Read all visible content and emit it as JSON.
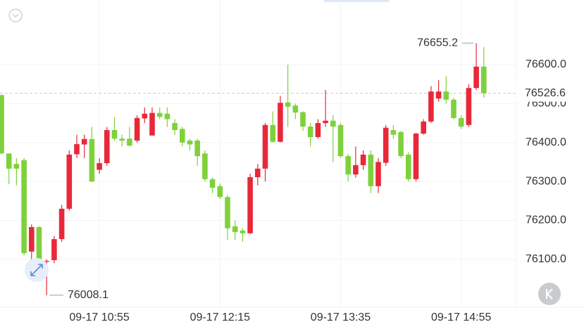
{
  "chart_data": {
    "type": "candlestick",
    "categories": [
      null,
      null,
      null,
      null,
      null,
      null,
      null,
      null,
      null,
      null,
      null,
      null,
      null,
      "09-17 10:55",
      null,
      null,
      null,
      null,
      null,
      null,
      null,
      null,
      null,
      null,
      null,
      null,
      null,
      null,
      null,
      "09-17 12:15",
      null,
      null,
      null,
      null,
      null,
      null,
      null,
      null,
      null,
      null,
      null,
      null,
      null,
      null,
      null,
      "09-17 13:35",
      null,
      null,
      null,
      null,
      null,
      null,
      null,
      null,
      null,
      null,
      null,
      null,
      null,
      null,
      null,
      "09-17 14:55",
      null,
      null,
      null
    ],
    "open": [
      76522,
      76372,
      76345,
      76355,
      76120,
      76183,
      76094,
      76098,
      76152,
      76230,
      76370,
      76395,
      76409,
      76330,
      76347,
      76432,
      76410,
      76410,
      76405,
      76462,
      76418,
      76476,
      76474,
      76450,
      76435,
      76405,
      76405,
      76372,
      76306,
      76288,
      76260,
      76185,
      76174,
      76167,
      76311,
      76333,
      76445,
      76402,
      76503,
      76495,
      76478,
      76441,
      76414,
      76450,
      76456,
      76445,
      76365,
      76318,
      76342,
      76369,
      76288,
      76348,
      76432,
      76427,
      76369,
      76306,
      76423,
      76454,
      76513,
      76531,
      76510,
      76463,
      76445,
      76540,
      76595
    ],
    "high": [
      76522,
      76372,
      76360,
      76360,
      76190,
      76185,
      76100,
      76160,
      76240,
      76380,
      76420,
      76420,
      76440,
      76360,
      76440,
      76465,
      76420,
      76440,
      76470,
      76490,
      76490,
      76490,
      76490,
      76460,
      76440,
      76410,
      76410,
      76380,
      76310,
      76295,
      76265,
      76200,
      76180,
      76320,
      76345,
      76450,
      76480,
      76520,
      76600,
      76500,
      76480,
      76450,
      76460,
      76535,
      76470,
      76450,
      76370,
      76390,
      76380,
      76380,
      76360,
      76445,
      76445,
      76430,
      76375,
      76425,
      76460,
      76545,
      76560,
      76570,
      76515,
      76470,
      76550,
      76655.2,
      76645
    ],
    "low": [
      76370,
      76293,
      76290,
      76110,
      76062,
      76085,
      76008.1,
      76090,
      76145,
      76225,
      76360,
      76360,
      76298,
      76320,
      76340,
      76405,
      76390,
      76390,
      76400,
      76450,
      76418,
      76460,
      76440,
      76420,
      76390,
      76380,
      76340,
      76300,
      76270,
      76255,
      76150,
      76150,
      76145,
      76165,
      76290,
      76300,
      76400,
      76400,
      76440,
      76460,
      76430,
      76390,
      76410,
      76440,
      76350,
      76360,
      76300,
      76310,
      76330,
      76270,
      76270,
      76340,
      76410,
      76360,
      76300,
      76300,
      76420,
      76450,
      76505,
      76500,
      76460,
      76435,
      76440,
      76535,
      76515
    ],
    "close": [
      76372,
      76333,
      76333,
      76116,
      76183,
      76090,
      76096,
      76152,
      76230,
      76369,
      76396,
      76409,
      76300,
      76347,
      76432,
      76410,
      76405,
      76392,
      76463,
      76474,
      76476,
      76466,
      76460,
      76432,
      76400,
      76395,
      76365,
      76306,
      76284,
      76260,
      76180,
      76170,
      76167,
      76311,
      76333,
      76445,
      76402,
      76502,
      76492,
      76477,
      76441,
      76414,
      76450,
      76456,
      76441,
      76365,
      76318,
      76342,
      76369,
      76288,
      76350,
      76438,
      76420,
      76365,
      76306,
      76423,
      76454,
      76531,
      76531,
      76510,
      76463,
      76441,
      76540,
      76595,
      76526.6
    ],
    "up_color": "#e8283a",
    "down_color": "#7fd13b",
    "ylim": [
      75977,
      76766
    ],
    "yticks": [
      {
        "value": 76100,
        "label": "76100.0"
      },
      {
        "value": 76200,
        "label": "76200.0"
      },
      {
        "value": 76300,
        "label": "76300.0"
      },
      {
        "value": 76400,
        "label": "76400.0"
      },
      {
        "value": 76500,
        "label": "76500.0"
      },
      {
        "value": 76600,
        "label": "76600.0"
      }
    ],
    "high_label": 76655.2,
    "low_label": 76008.1,
    "last_price": 76526.6,
    "grid": true
  }
}
